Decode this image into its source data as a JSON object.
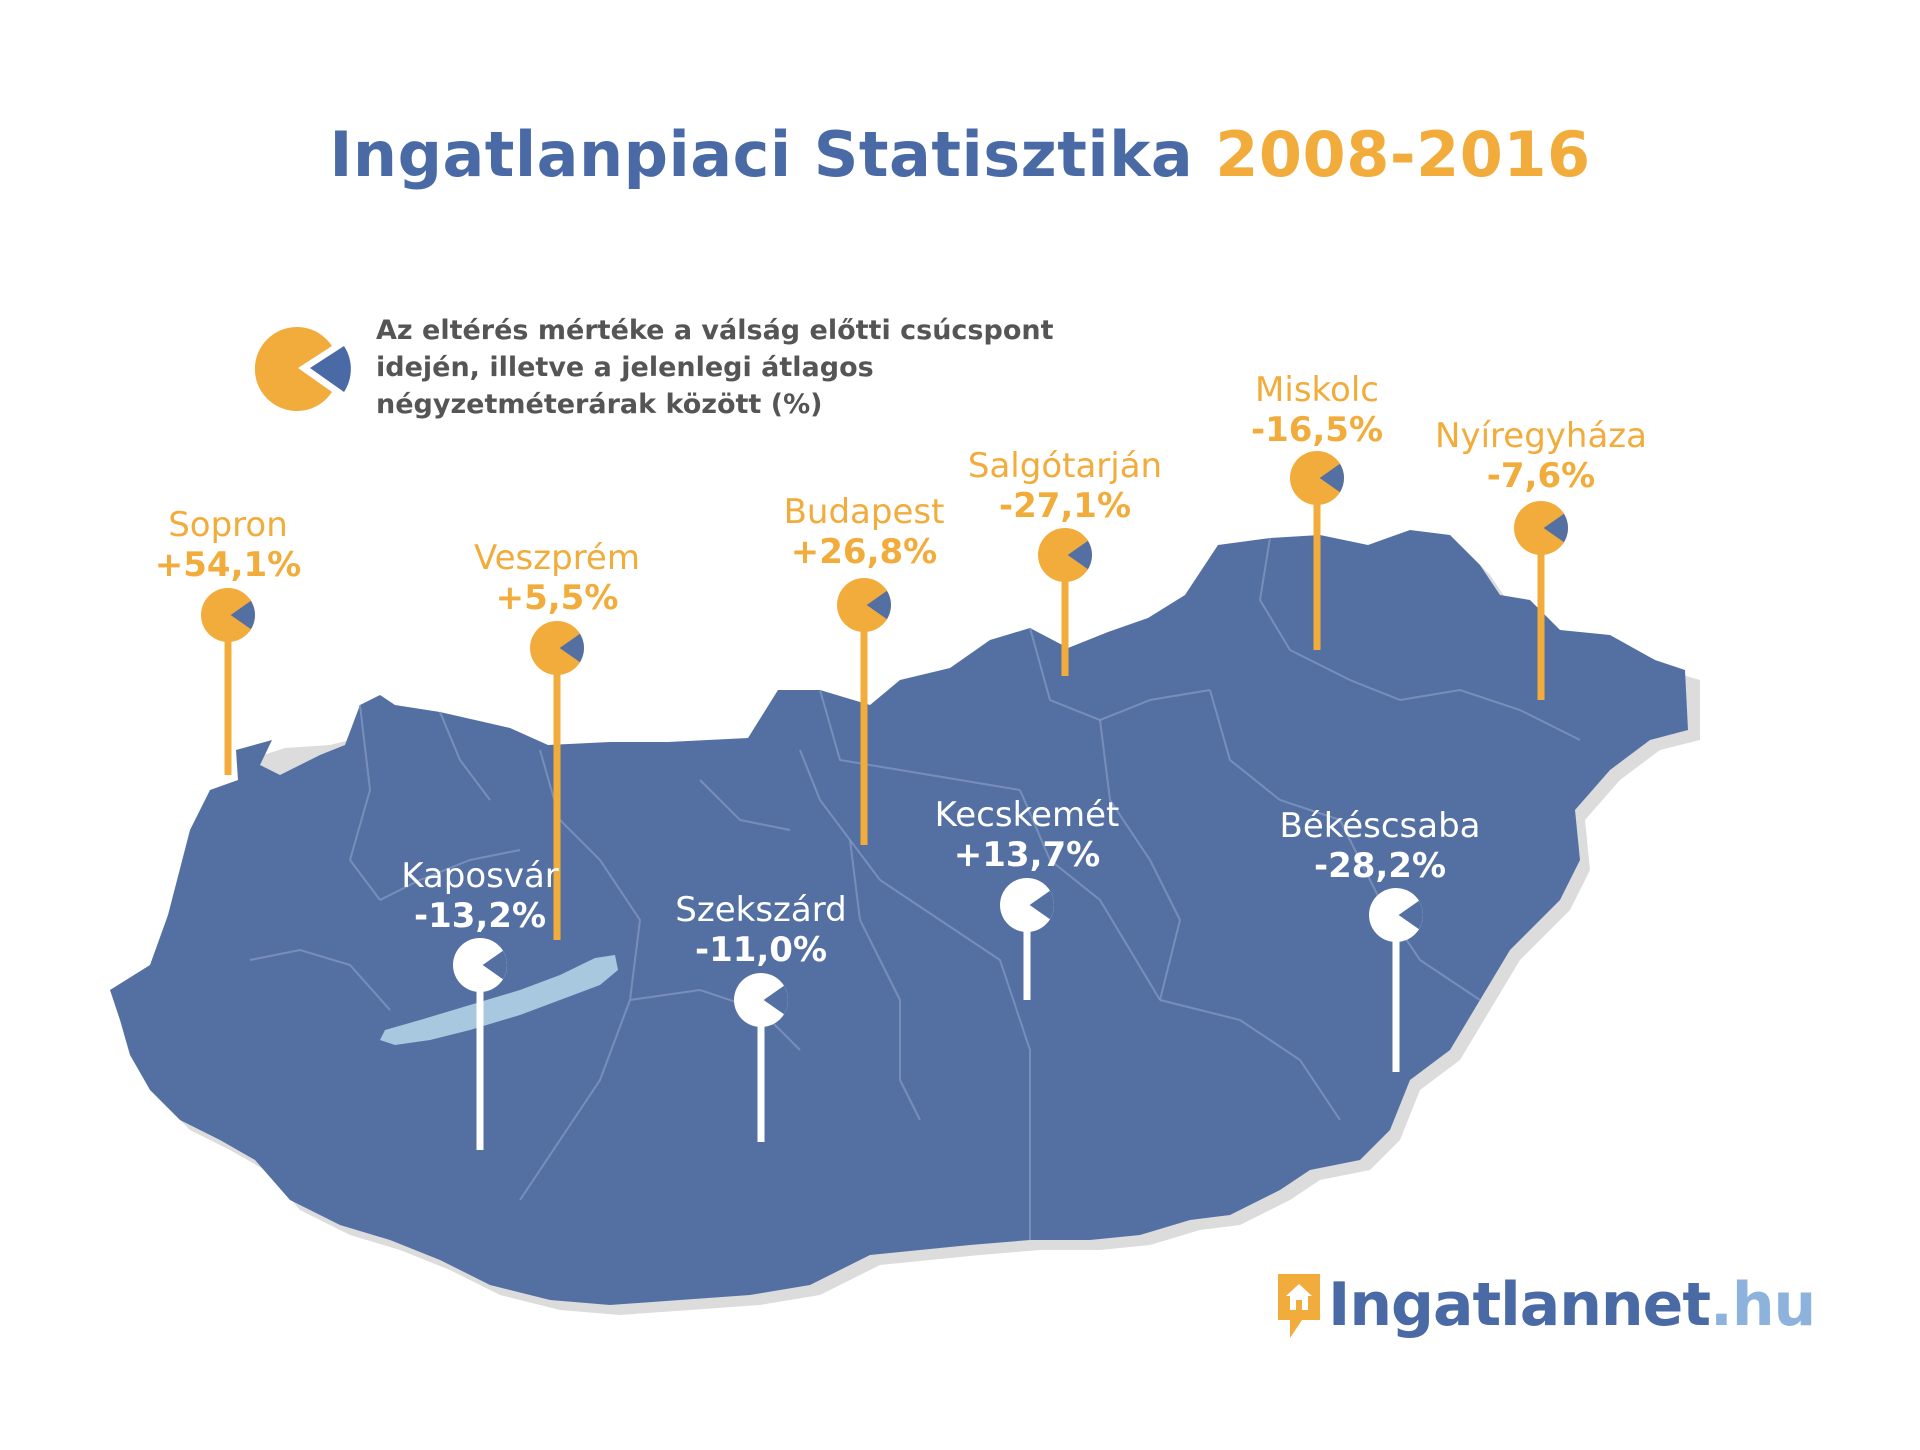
{
  "title": {
    "main": "Ingatlanpiaci Statisztika",
    "years": "2008-2016"
  },
  "legend": {
    "line1": "Az eltérés mértéke a válság előtti csúcspont",
    "line2": "idején, illetve a jelenlegi átlagos",
    "line3": "négyzetméterárak között (%)"
  },
  "colors": {
    "map": "#5470a3",
    "accent": "#f2ac3c",
    "title_blue": "#4a6aa5",
    "lake": "#a8c8e0"
  },
  "cities": [
    {
      "name": "Sopron",
      "value": "+54,1%",
      "style": "orange"
    },
    {
      "name": "Veszprém",
      "value": "+5,5%",
      "style": "orange"
    },
    {
      "name": "Budapest",
      "value": "+26,8%",
      "style": "orange"
    },
    {
      "name": "Salgótarján",
      "value": "-27,1%",
      "style": "orange"
    },
    {
      "name": "Miskolc",
      "value": "-16,5%",
      "style": "orange"
    },
    {
      "name": "Nyíregyháza",
      "value": "-7,6%",
      "style": "orange"
    },
    {
      "name": "Kaposvár",
      "value": "-13,2%",
      "style": "white"
    },
    {
      "name": "Szekszárd",
      "value": "-11,0%",
      "style": "white"
    },
    {
      "name": "Kecskemét",
      "value": "+13,7%",
      "style": "white"
    },
    {
      "name": "Békéscsaba",
      "value": "-28,2%",
      "style": "white"
    }
  ],
  "logo": {
    "brand": "Ingatlannet",
    "tld": ".hu",
    "icon": "house-pin-icon"
  }
}
